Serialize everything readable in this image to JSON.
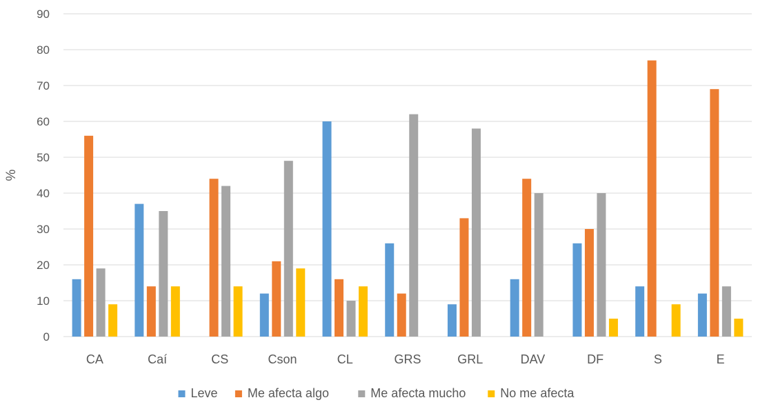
{
  "chart_data": {
    "type": "bar",
    "ylabel": "%",
    "xlabel": "",
    "ylim": [
      0,
      90
    ],
    "yticks": [
      0,
      10,
      20,
      30,
      40,
      50,
      60,
      70,
      80,
      90
    ],
    "grid": true,
    "legend_position": "bottom",
    "categories": [
      "CA",
      "Caí",
      "CS",
      "Cson",
      "CL",
      "GRS",
      "GRL",
      "DAV",
      "DF",
      "S",
      "E"
    ],
    "series": [
      {
        "name": "Leve",
        "color": "#5b9bd5",
        "values": [
          16,
          37,
          0,
          12,
          60,
          26,
          9,
          16,
          26,
          14,
          12
        ]
      },
      {
        "name": "Me afecta algo",
        "color": "#ed7d31",
        "values": [
          56,
          14,
          44,
          21,
          16,
          12,
          33,
          44,
          30,
          77,
          69
        ]
      },
      {
        "name": "Me afecta mucho",
        "color": "#a5a5a5",
        "values": [
          19,
          35,
          42,
          49,
          10,
          62,
          58,
          40,
          40,
          0,
          14
        ]
      },
      {
        "name": "No me afecta",
        "color": "#ffc000",
        "values": [
          9,
          14,
          14,
          19,
          14,
          0,
          0,
          0,
          5,
          9,
          5
        ]
      }
    ]
  }
}
